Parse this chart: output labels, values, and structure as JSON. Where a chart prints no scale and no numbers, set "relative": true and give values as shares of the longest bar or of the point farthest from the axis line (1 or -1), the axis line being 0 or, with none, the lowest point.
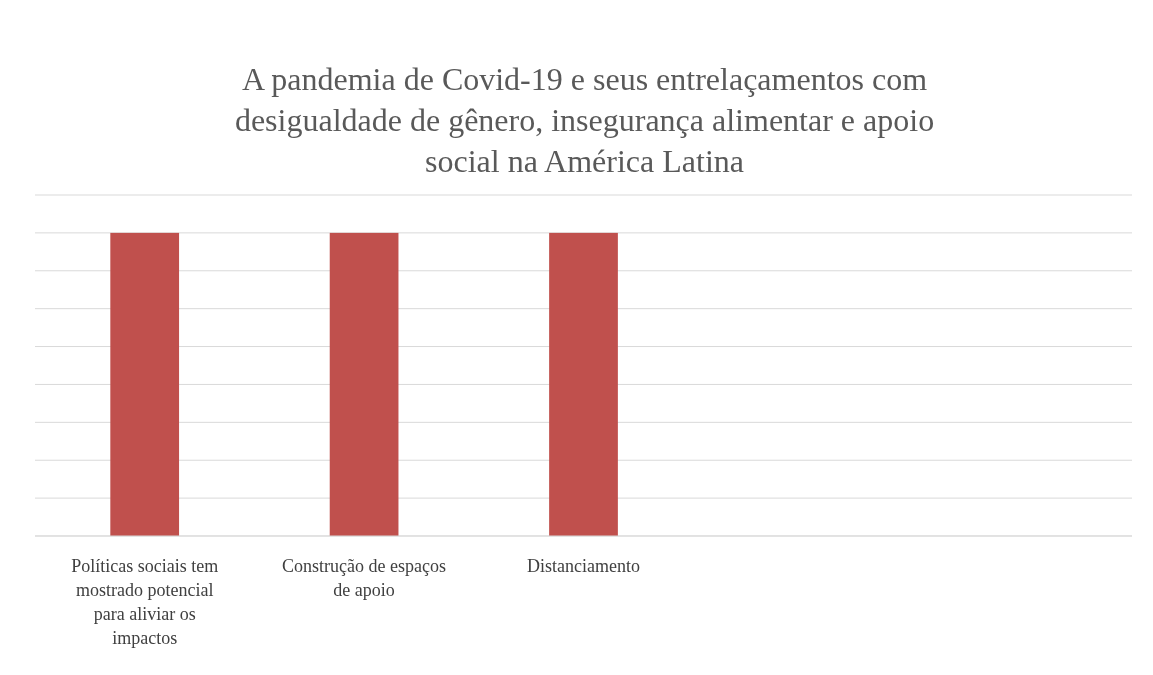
{
  "chart_data": {
    "type": "bar",
    "title": "A pandemia de Covid-19 e seus entrelaçamentos com desigualdade de gênero, insegurança alimentar e apoio social na América Latina",
    "categories": [
      "Políticas sociais tem mostrado potencial para aliviar os impactos",
      "Construção de espaços de apoio",
      "Distanciamento",
      null,
      null
    ],
    "values": [
      1,
      1,
      1,
      null,
      null
    ],
    "color": "#c0504d",
    "relative": true,
    "grid": "y"
  }
}
